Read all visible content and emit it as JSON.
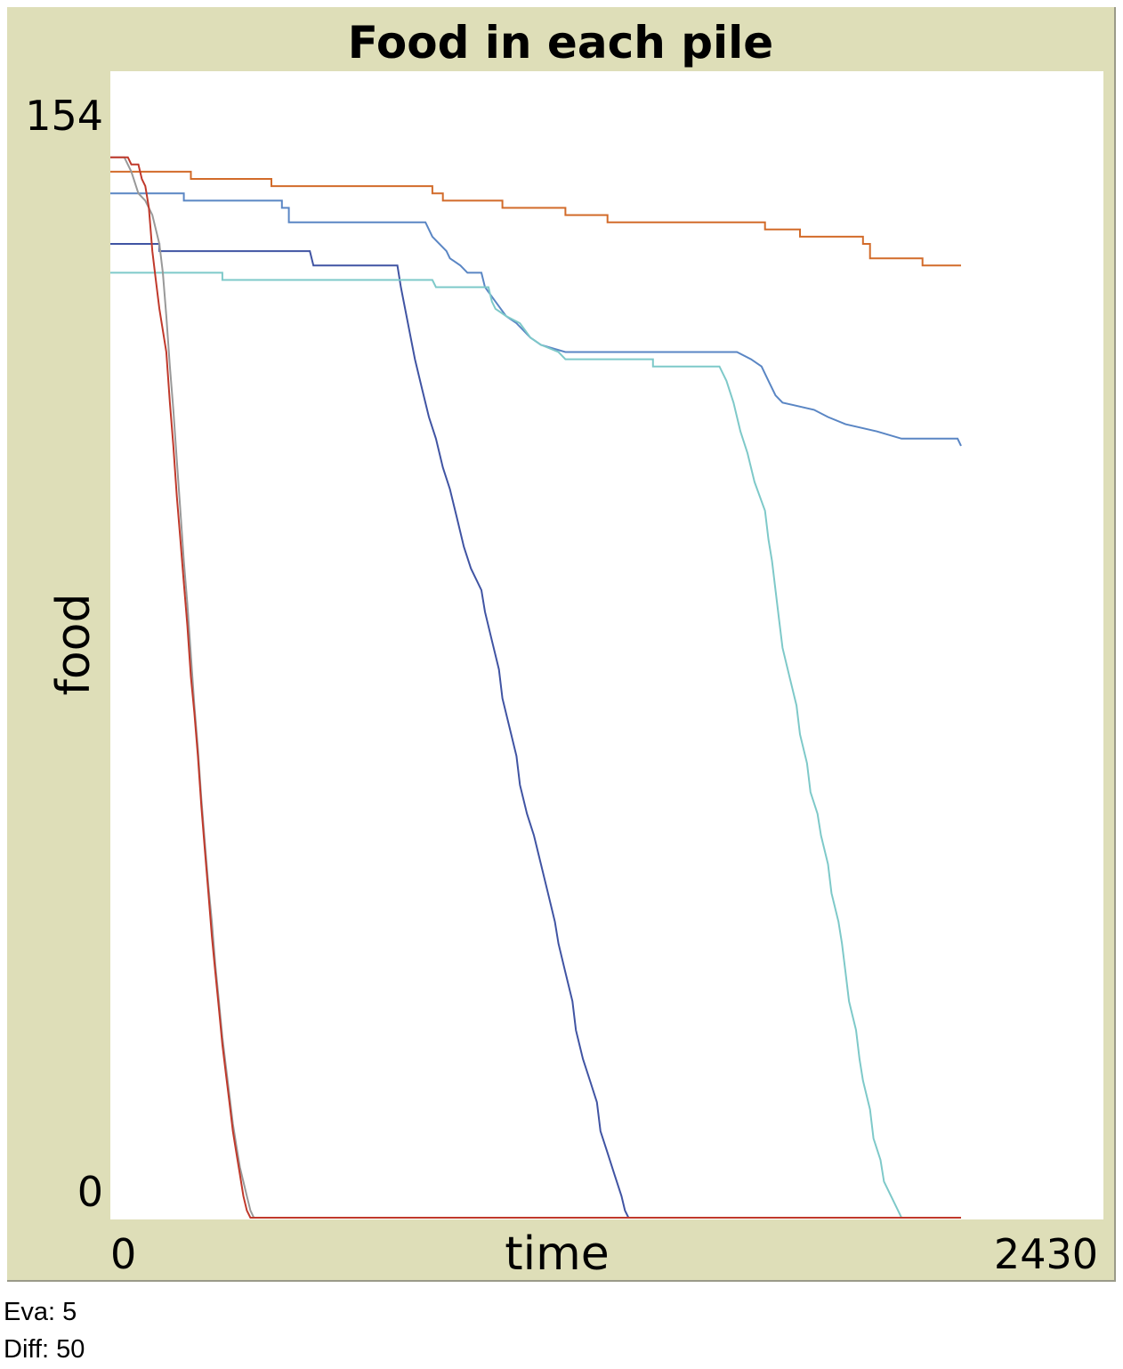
{
  "chart_data": {
    "type": "line",
    "title": "Food in each pile",
    "xlabel": "time",
    "ylabel": "food",
    "xlim": [
      0,
      2430
    ],
    "ylim": [
      0,
      154
    ],
    "x_tick_labels": [
      "0",
      "2430"
    ],
    "y_tick_labels": [
      "154",
      "0"
    ],
    "grid": false,
    "legend": "none",
    "series": [
      {
        "color": "#d26b2a",
        "points": [
          [
            0,
            145
          ],
          [
            230,
            145
          ],
          [
            230,
            144
          ],
          [
            460,
            144
          ],
          [
            460,
            143
          ],
          [
            920,
            143
          ],
          [
            920,
            142
          ],
          [
            950,
            142
          ],
          [
            950,
            141
          ],
          [
            1120,
            141
          ],
          [
            1120,
            140
          ],
          [
            1300,
            140
          ],
          [
            1300,
            139
          ],
          [
            1420,
            139
          ],
          [
            1420,
            138
          ],
          [
            1870,
            138
          ],
          [
            1870,
            137
          ],
          [
            1970,
            137
          ],
          [
            1970,
            136
          ],
          [
            2150,
            136
          ],
          [
            2150,
            135
          ],
          [
            2170,
            135
          ],
          [
            2170,
            133
          ],
          [
            2320,
            133
          ],
          [
            2320,
            132
          ],
          [
            2430,
            132
          ]
        ]
      },
      {
        "color": "#5a86c4",
        "points": [
          [
            0,
            142
          ],
          [
            210,
            142
          ],
          [
            210,
            141
          ],
          [
            490,
            141
          ],
          [
            490,
            140
          ],
          [
            510,
            140
          ],
          [
            510,
            138
          ],
          [
            900,
            138
          ],
          [
            920,
            136
          ],
          [
            960,
            134
          ],
          [
            970,
            133
          ],
          [
            1000,
            132
          ],
          [
            1020,
            131
          ],
          [
            1060,
            131
          ],
          [
            1070,
            129
          ],
          [
            1100,
            127
          ],
          [
            1130,
            125
          ],
          [
            1160,
            124
          ],
          [
            1200,
            122
          ],
          [
            1230,
            121
          ],
          [
            1300,
            120
          ],
          [
            1790,
            120
          ],
          [
            1830,
            119
          ],
          [
            1860,
            118
          ],
          [
            1880,
            116
          ],
          [
            1900,
            114
          ],
          [
            1920,
            113
          ],
          [
            2010,
            112
          ],
          [
            2050,
            111
          ],
          [
            2100,
            110
          ],
          [
            2190,
            109
          ],
          [
            2260,
            108
          ],
          [
            2420,
            108
          ],
          [
            2430,
            107
          ]
        ]
      },
      {
        "color": "#4054a3",
        "points": [
          [
            0,
            135
          ],
          [
            140,
            135
          ],
          [
            140,
            134
          ],
          [
            570,
            134
          ],
          [
            580,
            132
          ],
          [
            820,
            132
          ],
          [
            830,
            129
          ],
          [
            850,
            124
          ],
          [
            870,
            119
          ],
          [
            890,
            115
          ],
          [
            910,
            111
          ],
          [
            930,
            108
          ],
          [
            950,
            104
          ],
          [
            970,
            101
          ],
          [
            990,
            97
          ],
          [
            1010,
            93
          ],
          [
            1030,
            90
          ],
          [
            1060,
            87
          ],
          [
            1070,
            84
          ],
          [
            1090,
            80
          ],
          [
            1110,
            76
          ],
          [
            1120,
            72
          ],
          [
            1140,
            68
          ],
          [
            1160,
            64
          ],
          [
            1170,
            60
          ],
          [
            1190,
            56
          ],
          [
            1210,
            53
          ],
          [
            1230,
            49
          ],
          [
            1250,
            45
          ],
          [
            1270,
            41
          ],
          [
            1280,
            38
          ],
          [
            1300,
            34
          ],
          [
            1320,
            30
          ],
          [
            1330,
            26
          ],
          [
            1350,
            22
          ],
          [
            1370,
            19
          ],
          [
            1390,
            16
          ],
          [
            1400,
            12
          ],
          [
            1420,
            9
          ],
          [
            1440,
            6
          ],
          [
            1460,
            3
          ],
          [
            1470,
            1
          ],
          [
            1480,
            0
          ],
          [
            2430,
            0
          ]
        ]
      },
      {
        "color": "#7ec9c9",
        "points": [
          [
            0,
            131
          ],
          [
            320,
            131
          ],
          [
            320,
            130
          ],
          [
            920,
            130
          ],
          [
            930,
            129
          ],
          [
            1080,
            129
          ],
          [
            1090,
            127
          ],
          [
            1100,
            126
          ],
          [
            1130,
            125
          ],
          [
            1170,
            124
          ],
          [
            1200,
            122
          ],
          [
            1230,
            121
          ],
          [
            1280,
            120
          ],
          [
            1300,
            119
          ],
          [
            1550,
            119
          ],
          [
            1550,
            118
          ],
          [
            1740,
            118
          ],
          [
            1760,
            116
          ],
          [
            1780,
            113
          ],
          [
            1800,
            109
          ],
          [
            1820,
            106
          ],
          [
            1840,
            102
          ],
          [
            1870,
            98
          ],
          [
            1880,
            94
          ],
          [
            1890,
            91
          ],
          [
            1900,
            87
          ],
          [
            1910,
            83
          ],
          [
            1920,
            79
          ],
          [
            1940,
            75
          ],
          [
            1960,
            71
          ],
          [
            1970,
            67
          ],
          [
            1990,
            63
          ],
          [
            2000,
            59
          ],
          [
            2020,
            56
          ],
          [
            2030,
            53
          ],
          [
            2050,
            49
          ],
          [
            2060,
            45
          ],
          [
            2080,
            41
          ],
          [
            2090,
            38
          ],
          [
            2100,
            34
          ],
          [
            2110,
            30
          ],
          [
            2130,
            26
          ],
          [
            2140,
            22
          ],
          [
            2150,
            19
          ],
          [
            2170,
            15
          ],
          [
            2180,
            11
          ],
          [
            2200,
            8
          ],
          [
            2210,
            5
          ],
          [
            2230,
            3
          ],
          [
            2250,
            1
          ],
          [
            2260,
            0
          ],
          [
            2430,
            0
          ]
        ]
      },
      {
        "color": "#999999",
        "points": [
          [
            0,
            147
          ],
          [
            40,
            147
          ],
          [
            60,
            145
          ],
          [
            80,
            142
          ],
          [
            100,
            141
          ],
          [
            120,
            139
          ],
          [
            140,
            135
          ],
          [
            150,
            131
          ],
          [
            160,
            125
          ],
          [
            170,
            118
          ],
          [
            180,
            112
          ],
          [
            190,
            105
          ],
          [
            200,
            98
          ],
          [
            210,
            91
          ],
          [
            220,
            85
          ],
          [
            230,
            78
          ],
          [
            240,
            71
          ],
          [
            250,
            65
          ],
          [
            260,
            58
          ],
          [
            270,
            52
          ],
          [
            280,
            46
          ],
          [
            290,
            41
          ],
          [
            300,
            35
          ],
          [
            310,
            30
          ],
          [
            320,
            25
          ],
          [
            330,
            21
          ],
          [
            340,
            17
          ],
          [
            350,
            13
          ],
          [
            360,
            10
          ],
          [
            370,
            7
          ],
          [
            380,
            5
          ],
          [
            390,
            3
          ],
          [
            400,
            1
          ],
          [
            410,
            0
          ],
          [
            2430,
            0
          ]
        ]
      },
      {
        "color": "#c0392b",
        "points": [
          [
            0,
            147
          ],
          [
            50,
            147
          ],
          [
            60,
            146
          ],
          [
            80,
            146
          ],
          [
            90,
            144
          ],
          [
            100,
            143
          ],
          [
            110,
            140
          ],
          [
            120,
            134
          ],
          [
            130,
            130
          ],
          [
            140,
            126
          ],
          [
            160,
            120
          ],
          [
            170,
            113
          ],
          [
            180,
            107
          ],
          [
            190,
            100
          ],
          [
            200,
            94
          ],
          [
            210,
            88
          ],
          [
            220,
            82
          ],
          [
            230,
            75
          ],
          [
            240,
            70
          ],
          [
            250,
            64
          ],
          [
            260,
            57
          ],
          [
            270,
            51
          ],
          [
            280,
            45
          ],
          [
            290,
            39
          ],
          [
            300,
            34
          ],
          [
            310,
            29
          ],
          [
            320,
            24
          ],
          [
            330,
            20
          ],
          [
            340,
            16
          ],
          [
            350,
            12
          ],
          [
            360,
            9
          ],
          [
            370,
            6
          ],
          [
            380,
            3
          ],
          [
            390,
            1
          ],
          [
            400,
            0
          ],
          [
            2430,
            0
          ]
        ]
      }
    ]
  },
  "footer": {
    "eva": "Eva: 5",
    "diff": "Diff: 50"
  }
}
